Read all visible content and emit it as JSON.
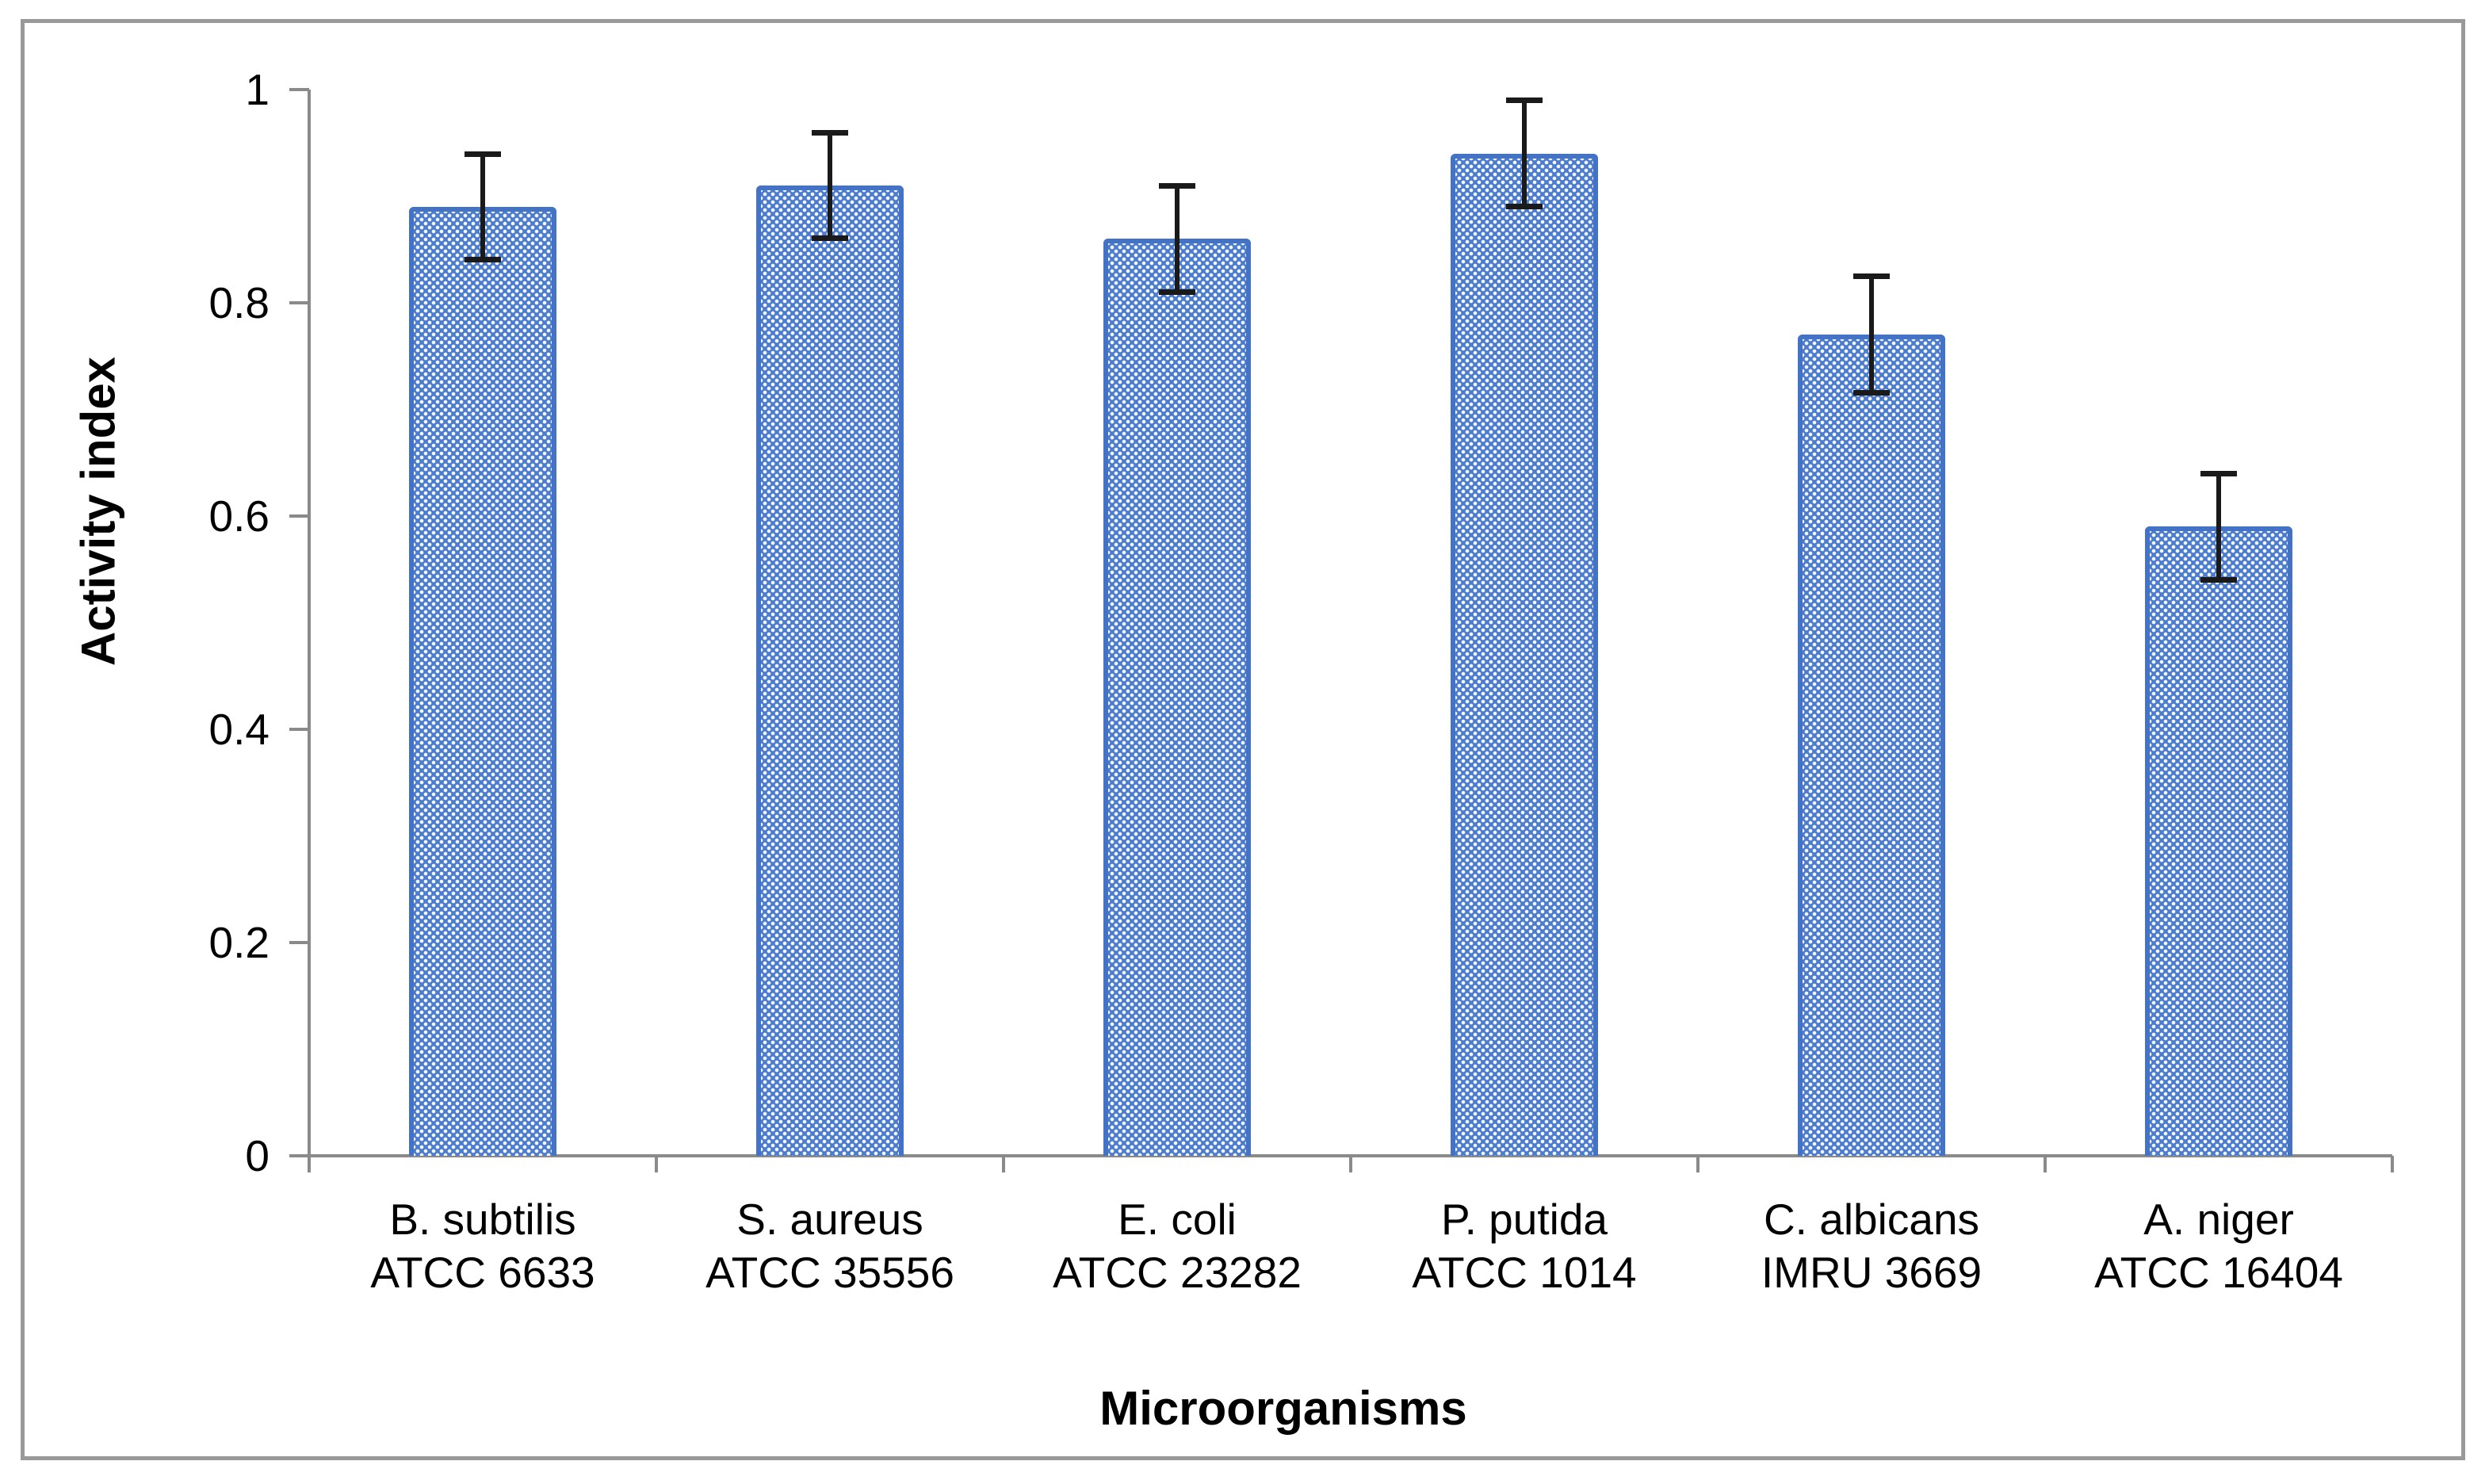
{
  "chart_data": {
    "type": "bar",
    "title": "",
    "xlabel": "Microorganisms",
    "ylabel": "Activity index",
    "ylim": [
      0,
      1
    ],
    "yticks": [
      0,
      0.2,
      0.4,
      0.6,
      0.8,
      1
    ],
    "ytick_labels": [
      "0",
      "0.2",
      "0.4",
      "0.6",
      "0.8",
      "1"
    ],
    "grid": false,
    "legend": null,
    "bar_pattern": "dotted-diamond",
    "categories": [
      {
        "line1": "B. subtilis",
        "line2": "ATCC 6633"
      },
      {
        "line1": "S. aureus",
        "line2": "ATCC 35556"
      },
      {
        "line1": "E. coli",
        "line2": "ATCC 23282"
      },
      {
        "line1": "P. putida",
        "line2": "ATCC 1014"
      },
      {
        "line1": "C. albicans",
        "line2": "IMRU 3669"
      },
      {
        "line1": "A. niger",
        "line2": "ATCC 16404"
      }
    ],
    "series": [
      {
        "name": "Activity index",
        "values": [
          0.89,
          0.91,
          0.86,
          0.94,
          0.77,
          0.59
        ],
        "errors": [
          0.05,
          0.05,
          0.05,
          0.05,
          0.055,
          0.05
        ]
      }
    ],
    "colors": {
      "bar_fill": "#4C7CCD",
      "bar_border": "#4472C4",
      "pattern_dots": "#FFFFFF",
      "error_bar": "#1A1A1A",
      "axis_line": "#8A8A8A",
      "frame_border": "#999999",
      "text": "#000000"
    }
  }
}
